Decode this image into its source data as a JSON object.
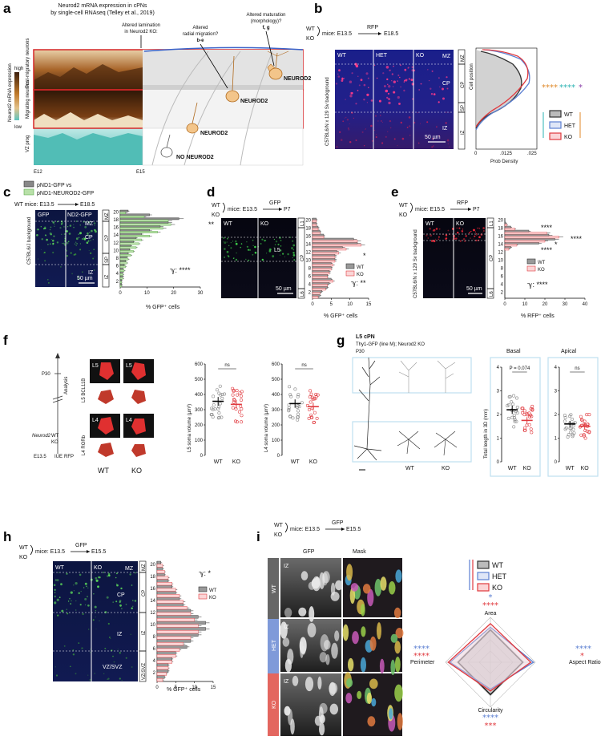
{
  "panels": {
    "a": {
      "letter": "a",
      "title_line1": "Neurod2 mRNA expression in cPNs",
      "title_line2": "by single-cell RNAseq (Telley et al., 2019)",
      "annot_lamination_1": "Altered lamination",
      "annot_lamination_2": "in Neurod2 KO:",
      "annot_radial_1": "Altered",
      "annot_radial_2": "radial migration?",
      "annot_radial_ref": "b-e",
      "annot_maturation_1": "Altered maturation",
      "annot_maturation_2": "(morphology)?",
      "annot_maturation_ref": "f, g",
      "row_postmig": "Post-migratory neurons",
      "row_migrating": "Migrating neurons",
      "row_vz": "VZ prog",
      "scale_high": "high",
      "scale_title": "Neurod2 mRNA expression",
      "scale_low": "low",
      "x_start": "E12",
      "x_end": "E15",
      "label_neurod2_1": "NEUROD2",
      "label_neurod2_2": "NEUROD2",
      "label_neurod2_3": "NEUROD2",
      "label_no_neurod2": "NO NEUROD2"
    },
    "b": {
      "letter": "b",
      "geno_wt": "WT",
      "geno_ko": "KO",
      "mice": "mice: E13.5",
      "arrow_to": "E18.5",
      "reporter": "RFP",
      "background": "C57BL6/N x 129 Sv background",
      "col_wt": "WT",
      "col_het": "HET",
      "col_ko": "KO",
      "layer_mz": "MZ",
      "layer_cp": "CP",
      "layer_iz": "IZ",
      "scalebar": "50 µm",
      "bracket_mz": "MZ",
      "bracket_cp": "CP",
      "bracket_sp": "SP",
      "bracket_iz": "IZ",
      "ylabel": "Cell position",
      "xlabel": "Prob Density",
      "tick_0": "0",
      "tick_mid": ".0125",
      "tick_max": ".025",
      "stars_orange": "****",
      "stars_teal": "****",
      "stars_purple": "*",
      "legend": [
        "WT",
        "HET",
        "KO"
      ]
    },
    "c": {
      "letter": "c",
      "legend_gray": "pND1-GFP vs",
      "legend_green": "pND1-NEUROD2-GFP",
      "mice": "WT mice: E13.5",
      "arrow_to": "E18.5",
      "background": "C57BL6/J background",
      "col_gfp": "GFP",
      "col_nd2": "ND2-GFP",
      "layer_mz": "MZ",
      "layer_cp": "CP",
      "layer_iz": "IZ",
      "scalebar": "50 µm",
      "bracket_mz": "MZ",
      "bracket_cp": "CP",
      "bracket_sp": "SP",
      "bracket_iz": "IZ",
      "sig": "**",
      "stat": "ℽ: ****",
      "xlabel": "% GFP⁺ cells",
      "xticks": [
        "0",
        "10",
        "20",
        "30"
      ],
      "yticks": [
        "2",
        "4",
        "6",
        "8",
        "10",
        "12",
        "14",
        "16",
        "18",
        "20"
      ]
    },
    "d": {
      "letter": "d",
      "geno_wt": "WT",
      "geno_ko": "KO",
      "mice": "mice: E13.5",
      "arrow_to": "P7",
      "reporter": "GFP",
      "col_wt": "WT",
      "col_ko": "KO",
      "layer_l5": "L5",
      "scalebar": "50 µm",
      "bracket_l1": "L1",
      "bracket_cp": "CP",
      "bracket_l6": "L6",
      "legend": [
        "WT",
        "KO"
      ],
      "sig": "*",
      "stat": "ℽ: **",
      "xlabel": "% GFP⁺ cells",
      "xticks": [
        "0",
        "5",
        "10",
        "15"
      ],
      "yticks": [
        "2",
        "4",
        "6",
        "8",
        "10",
        "12",
        "14",
        "16",
        "18",
        "20"
      ]
    },
    "e": {
      "letter": "e",
      "geno_wt": "WT",
      "geno_ko": "KO",
      "mice": "mice: E15.5",
      "arrow_to": "P7",
      "reporter": "RFP",
      "background": "C57BL6/N x 129 Sv background",
      "col_wt": "WT",
      "col_ko": "KO",
      "scalebar": "50 µm",
      "bracket_l1": "L1",
      "bracket_cp": "CP",
      "bracket_l6": "L6",
      "legend": [
        "WT",
        "KO"
      ],
      "sig_top": "****",
      "sig_16": "****",
      "sig_15": "*",
      "sig_14": "****",
      "stat": "ℽ: ****",
      "xlabel": "% RFP⁺ cells",
      "xticks": [
        "0",
        "10",
        "20",
        "30",
        "40"
      ],
      "yticks": [
        "2",
        "4",
        "6",
        "8",
        "10",
        "12",
        "14",
        "16",
        "18",
        "20"
      ]
    },
    "f": {
      "letter": "f",
      "timeline_p30": "P30",
      "timeline_analysis": "Analysis",
      "timeline_neurod2": "Neurod2",
      "timeline_wt": "WT",
      "timeline_ko": "KO",
      "timeline_e135": "E13.5",
      "timeline_iue": "IUE",
      "timeline_rfp": "RFP",
      "row_l5_marker": "L5 BCL11B",
      "row_l4_marker": "L4 RORb",
      "tile_l5": "L5",
      "tile_l4": "L4",
      "col_wt": "WT",
      "col_ko": "KO",
      "chart_l5_ylabel": "L5 soma volume (µm³)",
      "chart_l4_ylabel": "L4 soma volume (µm³)",
      "ns": "ns",
      "yticks": [
        "0",
        "100",
        "200",
        "300",
        "400",
        "500",
        "600"
      ]
    },
    "g": {
      "letter": "g",
      "title_1": "L5 cPN",
      "title_2": "Thy1-GFP (line M); Neurod2 KO",
      "title_3": "P30",
      "tree_wt": "WT",
      "tree_ko": "KO",
      "basal": "Basal",
      "apical": "Apical",
      "pval": "P = 0.074",
      "ns": "ns",
      "ylabel": "Total length in 3D (mm)",
      "yticks": [
        "0",
        "1",
        "2",
        "3",
        "4"
      ],
      "col_wt": "WT",
      "col_ko": "KO"
    },
    "h": {
      "letter": "h",
      "geno_wt": "WT",
      "geno_ko": "KO",
      "mice": "mice: E13.5",
      "arrow_to": "E15.5",
      "reporter": "GFP",
      "col_wt": "WT",
      "col_ko": "KO",
      "layer_mz": "MZ",
      "layer_cp": "CP",
      "layer_iz": "IZ",
      "layer_vz": "VZ/SVZ",
      "bracket_mz": "MZ",
      "bracket_cp": "CP",
      "bracket_iz": "IZ",
      "bracket_vz": "VZ/SVZ",
      "stat": "ℽ: *",
      "legend": [
        "WT",
        "KO"
      ],
      "xlabel": "% GFP⁺ cells",
      "xticks": [
        "0",
        "5",
        "10",
        "15"
      ],
      "yticks": [
        "2",
        "4",
        "6",
        "8",
        "10",
        "12",
        "14",
        "16",
        "18",
        "20"
      ]
    },
    "i": {
      "letter": "i",
      "geno_wt": "WT",
      "geno_ko": "KO",
      "mice": "mice: E13.5",
      "arrow_to": "E15.5",
      "reporter": "GFP",
      "col_gfp": "GFP",
      "col_mask": "Mask",
      "row_wt": "WT",
      "row_het": "HET",
      "row_ko": "KO",
      "iz": "IZ",
      "legend": [
        "WT",
        "HET",
        "KO"
      ],
      "axis_area": "Area",
      "axis_aspect": "Aspect Ratio",
      "axis_circ": "Circularity",
      "axis_perim": "Perimeter",
      "area_blue": "*",
      "area_red": "****",
      "aspect_blue": "****",
      "aspect_red": "*",
      "circ_blue": "****",
      "circ_red": "***",
      "perim_blue": "****",
      "perim_red": "****"
    }
  },
  "colors": {
    "wt": "#333333",
    "het": "#5b7fd1",
    "ko": "#e0393e",
    "gfp": "#2ea043",
    "orange": "#e08a2a",
    "teal": "#2bb3b3",
    "purple": "#8a3fa8"
  },
  "chart_data": [
    {
      "type": "bar",
      "panel": "c",
      "orientation": "horizontal",
      "categories": [
        1,
        2,
        3,
        4,
        5,
        6,
        7,
        8,
        9,
        10,
        11,
        12,
        13,
        14,
        15,
        16,
        17,
        18,
        19,
        20
      ],
      "series": [
        {
          "name": "pND1-GFP",
          "values": [
            0.5,
            0.5,
            1,
            1,
            1,
            1.5,
            2,
            2.5,
            3,
            3.5,
            4,
            5,
            6,
            8,
            11,
            15,
            18,
            22,
            11,
            3
          ]
        },
        {
          "name": "pND1-NEUROD2-GFP",
          "values": [
            0.5,
            0.5,
            1,
            1,
            1.5,
            2,
            2.5,
            3,
            4,
            5,
            6,
            7,
            8,
            11,
            14,
            16,
            19,
            18,
            9,
            2
          ]
        }
      ],
      "xlabel": "% GFP⁺ cells",
      "xlim": [
        0,
        30
      ]
    },
    {
      "type": "bar",
      "panel": "d",
      "orientation": "horizontal",
      "categories": [
        1,
        2,
        3,
        4,
        5,
        6,
        7,
        8,
        9,
        10,
        11,
        12,
        13,
        14,
        15,
        16,
        17,
        18,
        19,
        20
      ],
      "series": [
        {
          "name": "WT",
          "values": [
            2,
            2.5,
            4,
            4.5,
            5,
            4,
            4.5,
            5,
            5,
            6,
            6,
            6.5,
            8,
            12,
            11,
            3,
            2,
            1.5,
            1,
            1
          ]
        },
        {
          "name": "KO",
          "values": [
            1.5,
            2,
            3.5,
            4,
            5.5,
            4,
            4.5,
            5,
            5.5,
            6,
            6,
            7,
            9,
            13,
            12,
            3,
            2,
            1.5,
            1,
            1
          ]
        }
      ],
      "xlabel": "% GFP⁺ cells",
      "xlim": [
        0,
        15
      ]
    },
    {
      "type": "bar",
      "panel": "e",
      "orientation": "horizontal",
      "categories": [
        1,
        2,
        3,
        4,
        5,
        6,
        7,
        8,
        9,
        10,
        11,
        12,
        13,
        14,
        15,
        16,
        17,
        18,
        19,
        20
      ],
      "series": [
        {
          "name": "WT",
          "values": [
            0,
            0,
            0,
            0,
            0,
            0,
            0,
            0,
            0,
            0,
            0,
            0,
            3,
            17,
            25,
            22,
            12,
            3,
            0.5,
            0
          ],
          "note_hidden": false
        },
        {
          "name": "KO",
          "values": [
            0,
            0,
            0,
            0,
            0,
            0,
            0,
            0,
            0,
            0,
            0,
            0,
            2,
            6,
            20,
            27,
            21,
            5,
            1,
            0
          ]
        }
      ],
      "xlabel": "% RFP⁺ cells",
      "xlim": [
        0,
        40
      ]
    },
    {
      "type": "scatter",
      "panel": "f-L5",
      "categories": [
        "WT",
        "KO"
      ],
      "means": [
        355,
        335
      ],
      "ylim": [
        0,
        600
      ],
      "ylabel": "L5 soma volume (µm³)"
    },
    {
      "type": "scatter",
      "panel": "f-L4",
      "categories": [
        "WT",
        "KO"
      ],
      "means": [
        340,
        320
      ],
      "ylim": [
        0,
        600
      ],
      "ylabel": "L4 soma volume (µm³)"
    },
    {
      "type": "scatter",
      "panel": "g-basal",
      "categories": [
        "WT",
        "KO"
      ],
      "means": [
        2.2,
        1.75
      ],
      "ylim": [
        0,
        4
      ],
      "ylabel": "Total length in 3D (mm)"
    },
    {
      "type": "scatter",
      "panel": "g-apical",
      "categories": [
        "WT",
        "KO"
      ],
      "means": [
        1.6,
        1.5
      ],
      "ylim": [
        0,
        4
      ]
    },
    {
      "type": "bar",
      "panel": "h",
      "orientation": "horizontal",
      "categories": [
        1,
        2,
        3,
        4,
        5,
        6,
        7,
        8,
        9,
        10,
        11,
        12,
        13,
        14,
        15,
        16,
        17,
        18,
        19,
        20
      ],
      "series": [
        {
          "name": "WT",
          "values": [
            2,
            3,
            3,
            4,
            5,
            8,
            9,
            11,
            13,
            13,
            11,
            9,
            7,
            6,
            5,
            4,
            3,
            2,
            1.5,
            1
          ]
        },
        {
          "name": "KO",
          "values": [
            1.5,
            2.5,
            3,
            4,
            5,
            6,
            7,
            9,
            11,
            11,
            10,
            9,
            8,
            7,
            6,
            5,
            4,
            3,
            2,
            1.5
          ]
        }
      ],
      "xlabel": "% GFP⁺ cells",
      "xlim": [
        0,
        15
      ]
    }
  ]
}
